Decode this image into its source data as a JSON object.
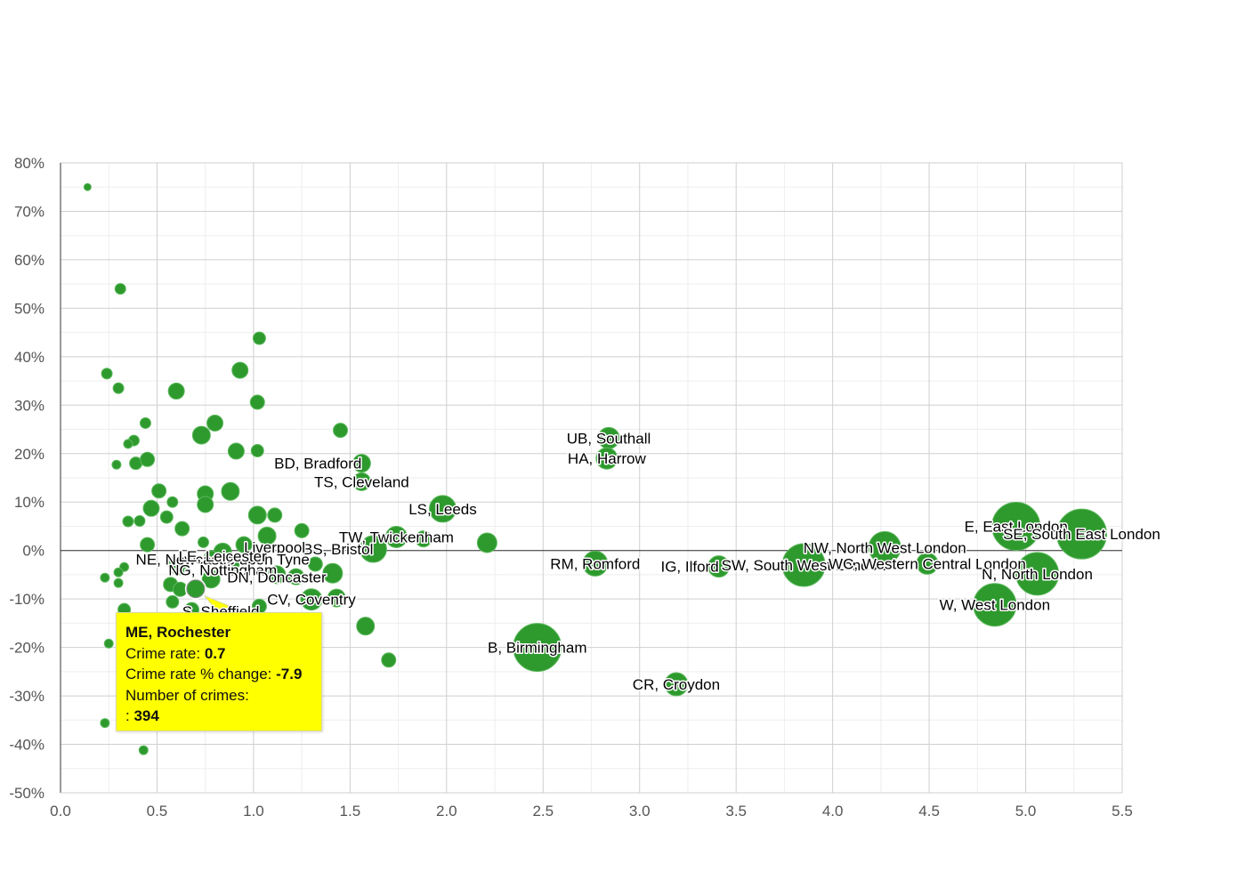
{
  "chart_data": {
    "type": "scatter",
    "title": "",
    "xlabel": "",
    "ylabel": "",
    "xlim": [
      0,
      5.5
    ],
    "ylim": [
      -50,
      80
    ],
    "x_ticks": [
      "0.0",
      "0.5",
      "1.0",
      "1.5",
      "2.0",
      "2.5",
      "3.0",
      "3.5",
      "4.0",
      "4.5",
      "5.0",
      "5.5"
    ],
    "y_ticks": [
      "80%",
      "70%",
      "60%",
      "50%",
      "40%",
      "30%",
      "20%",
      "10%",
      "0%",
      "-10%",
      "-20%",
      "-30%",
      "-40%",
      "-50%"
    ],
    "grid": true,
    "colors": {
      "bubble": "#2e9a2e",
      "bubble_stroke": "#5cb85c",
      "tooltip_bg": "#ffff00"
    },
    "points": [
      {
        "x": 0.14,
        "y": 75,
        "r": 4
      },
      {
        "x": 0.31,
        "y": 54,
        "r": 6
      },
      {
        "x": 0.24,
        "y": 36.5,
        "r": 6
      },
      {
        "x": 0.3,
        "y": 33.5,
        "r": 6
      },
      {
        "x": 0.44,
        "y": 26.3,
        "r": 6
      },
      {
        "x": 0.38,
        "y": 22.7,
        "r": 6
      },
      {
        "x": 0.35,
        "y": 22.0,
        "r": 5
      },
      {
        "x": 0.29,
        "y": 17.7,
        "r": 5
      },
      {
        "x": 0.39,
        "y": 18,
        "r": 7
      },
      {
        "x": 0.45,
        "y": 18.8,
        "r": 8
      },
      {
        "x": 0.51,
        "y": 12.3,
        "r": 8
      },
      {
        "x": 0.58,
        "y": 10,
        "r": 6
      },
      {
        "x": 0.47,
        "y": 8.7,
        "r": 9
      },
      {
        "x": 0.35,
        "y": 6,
        "r": 6
      },
      {
        "x": 0.41,
        "y": 6.1,
        "r": 6
      },
      {
        "x": 0.55,
        "y": 6.9,
        "r": 7
      },
      {
        "x": 0.63,
        "y": 4.5,
        "r": 8
      },
      {
        "x": 0.45,
        "y": 1.2,
        "r": 8
      },
      {
        "x": 0.6,
        "y": 32.9,
        "r": 9
      },
      {
        "x": 0.73,
        "y": 23.8,
        "r": 10
      },
      {
        "x": 0.8,
        "y": 26.3,
        "r": 9
      },
      {
        "x": 0.75,
        "y": 11.7,
        "r": 9
      },
      {
        "x": 0.75,
        "y": 9.5,
        "r": 9
      },
      {
        "x": 0.88,
        "y": 12.2,
        "r": 10
      },
      {
        "x": 0.91,
        "y": 20.5,
        "r": 9
      },
      {
        "x": 0.93,
        "y": 37.2,
        "r": 9
      },
      {
        "x": 1.03,
        "y": 43.8,
        "r": 7
      },
      {
        "x": 1.02,
        "y": 30.6,
        "r": 8
      },
      {
        "x": 1.02,
        "y": 20.6,
        "r": 7
      },
      {
        "x": 1.02,
        "y": 7.3,
        "r": 10
      },
      {
        "x": 1.11,
        "y": 7.3,
        "r": 8
      },
      {
        "x": 1.25,
        "y": 4.1,
        "r": 8
      },
      {
        "x": 1.07,
        "y": 3.0,
        "r": 10
      },
      {
        "x": 1.45,
        "y": 24.8,
        "r": 8
      },
      {
        "x": 0.74,
        "y": 1.7,
        "r": 6
      },
      {
        "x": 0.95,
        "y": 1.2,
        "r": 9
      },
      {
        "x": 0.84,
        "y": -0.3,
        "r": 10
      },
      {
        "x": 0.78,
        "y": -1.5,
        "r": 8
      },
      {
        "x": 0.86,
        "y": -2.2,
        "r": 9
      },
      {
        "x": 0.89,
        "y": -2.7,
        "r": 8
      },
      {
        "x": 0.58,
        "y": -2.5,
        "r": 6
      },
      {
        "x": 0.61,
        "y": -3.6,
        "r": 8
      },
      {
        "x": 0.33,
        "y": -3.4,
        "r": 5
      },
      {
        "x": 0.3,
        "y": -4.5,
        "r": 5
      },
      {
        "x": 0.23,
        "y": -5.6,
        "r": 5
      },
      {
        "x": 0.3,
        "y": -6.7,
        "r": 5
      },
      {
        "x": 0.57,
        "y": -7.0,
        "r": 8
      },
      {
        "x": 0.62,
        "y": -8.0,
        "r": 8
      },
      {
        "x": 0.7,
        "y": -7.9,
        "r": 10
      },
      {
        "x": 0.78,
        "y": -5.9,
        "r": 10
      },
      {
        "x": 0.58,
        "y": -10.6,
        "r": 7
      },
      {
        "x": 0.68,
        "y": -12.2,
        "r": 8
      },
      {
        "x": 0.33,
        "y": -12.2,
        "r": 7
      },
      {
        "x": 0.25,
        "y": -19.2,
        "r": 5
      },
      {
        "x": 0.23,
        "y": -35.6,
        "r": 5
      },
      {
        "x": 0.43,
        "y": -41.2,
        "r": 5
      },
      {
        "x": 1.03,
        "y": -11.5,
        "r": 8
      },
      {
        "x": 1.12,
        "y": -5.0,
        "r": 10
      },
      {
        "x": 1.22,
        "y": -5.4,
        "r": 9
      },
      {
        "x": 1.32,
        "y": -2.8,
        "r": 8
      },
      {
        "x": 1.41,
        "y": -4.7,
        "r": 11
      },
      {
        "x": 1.43,
        "y": -9.8,
        "r": 10
      },
      {
        "x": 1.3,
        "y": -10.1,
        "r": 12
      },
      {
        "x": 1.58,
        "y": -15.6,
        "r": 10
      },
      {
        "x": 1.7,
        "y": -22.6,
        "r": 8
      },
      {
        "x": 1.56,
        "y": 18.0,
        "r": 10
      },
      {
        "x": 1.56,
        "y": 14.2,
        "r": 10
      },
      {
        "x": 1.98,
        "y": 8.6,
        "r": 15
      },
      {
        "x": 1.74,
        "y": 2.8,
        "r": 12
      },
      {
        "x": 1.88,
        "y": 2.4,
        "r": 9
      },
      {
        "x": 1.62,
        "y": 0.3,
        "r": 15
      },
      {
        "x": 2.21,
        "y": 1.6,
        "r": 11
      },
      {
        "x": 2.84,
        "y": 23.2,
        "r": 12
      },
      {
        "x": 2.83,
        "y": 19.0,
        "r": 12
      },
      {
        "x": 2.77,
        "y": -2.7,
        "r": 14
      },
      {
        "x": 2.47,
        "y": -20.0,
        "r": 27
      },
      {
        "x": 3.19,
        "y": -27.6,
        "r": 13
      },
      {
        "x": 3.41,
        "y": -3.3,
        "r": 12
      },
      {
        "x": 3.85,
        "y": -3.0,
        "r": 24
      },
      {
        "x": 4.27,
        "y": 0.6,
        "r": 18
      },
      {
        "x": 4.49,
        "y": -2.7,
        "r": 12
      },
      {
        "x": 4.95,
        "y": 5.0,
        "r": 27
      },
      {
        "x": 5.29,
        "y": 3.4,
        "r": 28
      },
      {
        "x": 5.06,
        "y": -4.8,
        "r": 24
      },
      {
        "x": 4.84,
        "y": -11.2,
        "r": 24
      }
    ],
    "labels": [
      {
        "text": "BD, Bradford",
        "x": 1.56,
        "y": 18.0,
        "anchor": "end"
      },
      {
        "text": "TS, Cleveland",
        "x": 1.56,
        "y": 14.2,
        "anchor": "middle"
      },
      {
        "text": "LS, Leeds",
        "x": 1.98,
        "y": 8.6,
        "anchor": "middle"
      },
      {
        "text": "TW, Twickenham",
        "x": 1.74,
        "y": 2.8,
        "anchor": "middle"
      },
      {
        "text": "BS, Bristol",
        "x": 1.62,
        "y": 0.3,
        "anchor": "end"
      },
      {
        "text": "Liverpool",
        "x": 0.95,
        "y": 0.7,
        "anchor": "start"
      },
      {
        "text": "NE, Newcastle upon Tyne",
        "x": 0.84,
        "y": -1.8,
        "anchor": "middle"
      },
      {
        "text": "LE, Leicester",
        "x": 0.84,
        "y": -1.2,
        "anchor": "middle"
      },
      {
        "text": "NG, Nottingham",
        "x": 0.84,
        "y": -4.0,
        "anchor": "middle"
      },
      {
        "text": "DN, Doncaster",
        "x": 1.12,
        "y": -5.5,
        "anchor": "middle"
      },
      {
        "text": "CV, Coventry",
        "x": 1.3,
        "y": -10.1,
        "anchor": "middle"
      },
      {
        "text": "S, Sheffield",
        "x": 1.03,
        "y": -12.5,
        "anchor": "end"
      },
      {
        "text": "UB, Southall",
        "x": 2.84,
        "y": 23.2,
        "anchor": "middle"
      },
      {
        "text": "HA, Harrow",
        "x": 2.83,
        "y": 19.0,
        "anchor": "middle"
      },
      {
        "text": "RM, Romford",
        "x": 2.77,
        "y": -2.7,
        "anchor": "middle"
      },
      {
        "text": "B, Birmingham",
        "x": 2.47,
        "y": -20.0,
        "anchor": "middle"
      },
      {
        "text": "CR, Croydon",
        "x": 3.19,
        "y": -27.6,
        "anchor": "middle"
      },
      {
        "text": "IG, Ilford",
        "x": 3.41,
        "y": -3.3,
        "anchor": "end"
      },
      {
        "text": "SW, South West London",
        "x": 3.85,
        "y": -3.0,
        "anchor": "middle"
      },
      {
        "text": "NW, North West London",
        "x": 4.27,
        "y": 0.6,
        "anchor": "middle"
      },
      {
        "text": "WC, Western Central London",
        "x": 4.49,
        "y": -2.7,
        "anchor": "middle"
      },
      {
        "text": "E, East London",
        "x": 4.95,
        "y": 5.0,
        "anchor": "middle"
      },
      {
        "text": "SE, South East London",
        "x": 5.29,
        "y": 3.4,
        "anchor": "middle"
      },
      {
        "text": "N, North London",
        "x": 5.06,
        "y": -4.8,
        "anchor": "middle"
      },
      {
        "text": "W, West London",
        "x": 4.84,
        "y": -11.2,
        "anchor": "middle"
      }
    ],
    "highlight": {
      "x": 0.7,
      "y": -7.9
    }
  },
  "tooltip": {
    "title": "ME, Rochester",
    "rate_label": "Crime rate:",
    "rate_value": "0.7",
    "change_label": "Crime rate % change:",
    "change_value": "-7.9",
    "crimes_label": "Number of crimes:",
    "crimes_prefix": ":",
    "crimes_value": "394"
  }
}
